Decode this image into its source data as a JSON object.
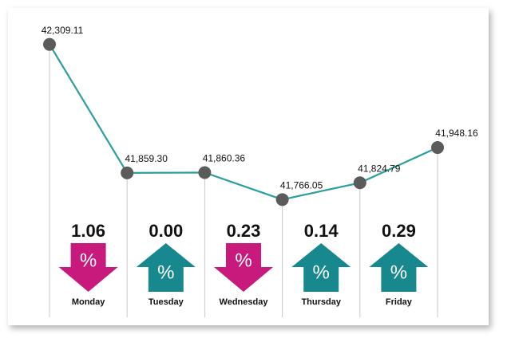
{
  "chart_data": {
    "type": "line",
    "values": [
      42309.11,
      41859.3,
      41860.36,
      41766.05,
      41824.79,
      41948.16
    ],
    "value_labels": [
      "42,309.11",
      "41,859.30",
      "41,860.36",
      "41,766.05",
      "41,824.79",
      "41,948.16"
    ],
    "color": "#2a9ea0",
    "marker_color": "#5b5b5b",
    "ylim": [
      41700,
      42350
    ],
    "changes": {
      "days": [
        "Monday",
        "Tuesday",
        "Wednesday",
        "Thursday",
        "Friday"
      ],
      "values": [
        1.06,
        0.0,
        0.23,
        0.14,
        0.29
      ],
      "value_labels": [
        "1.06",
        "0.00",
        "0.23",
        "0.14",
        "0.29"
      ],
      "directions": [
        "down",
        "up",
        "down",
        "up",
        "up"
      ],
      "up_color": "#17898e",
      "down_color": "#c8197c",
      "symbol": "%"
    }
  }
}
